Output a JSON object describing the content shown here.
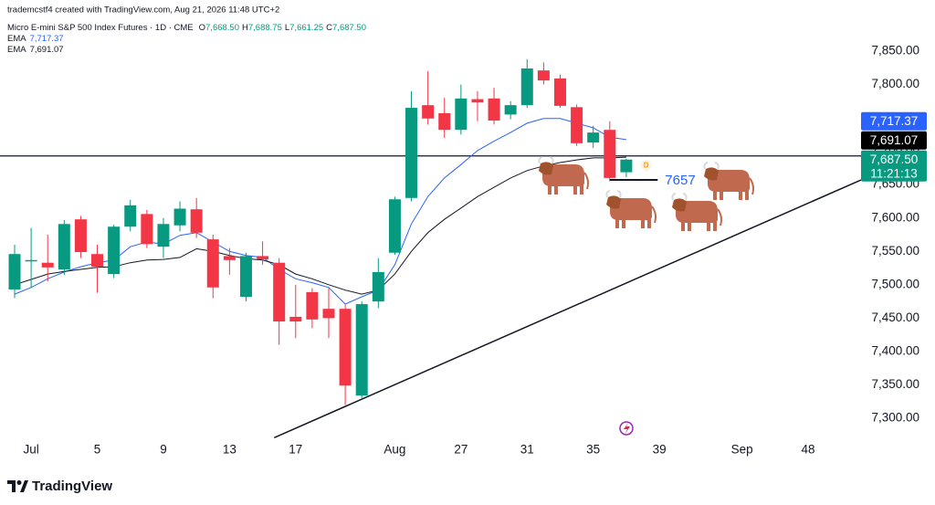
{
  "chart_data": {
    "type": "candlestick",
    "attribution": "trademcstf4 created with TradingView.com, Aug 21, 2026 11:48 UTC+2",
    "title": "Micro E-mini S&P 500 Index Futures · 1D · CME",
    "ohlc_header": [
      {
        "key": "O",
        "value": "7,668.50"
      },
      {
        "key": "H",
        "value": "7,688.75"
      },
      {
        "key": "L",
        "value": "7,661.25"
      },
      {
        "key": "C",
        "value": "7,687.50"
      }
    ],
    "up_color": "#089981",
    "down_color": "#f23645",
    "x": [
      0,
      1,
      2,
      3,
      4,
      5,
      6,
      7,
      8,
      9,
      10,
      11,
      12,
      13,
      14,
      15,
      16,
      17,
      18,
      19,
      20,
      21,
      22,
      23,
      24,
      25,
      26,
      27,
      28,
      29,
      30,
      31,
      32,
      33,
      34,
      35,
      36,
      37
    ],
    "open": [
      7493,
      7535,
      7533,
      7523,
      7598,
      7546,
      7516,
      7587,
      7606,
      7557,
      7589,
      7613,
      7568,
      7543,
      7482,
      7543,
      7533,
      7452,
      7489,
      7464,
      7464,
      7334,
      7475,
      7548,
      7630,
      7769,
      7757,
      7732,
      7778,
      7779,
      7755,
      7769,
      7821,
      7809,
      7766,
      7713,
      7732,
      7668.5
    ],
    "high": [
      7560,
      7585,
      7575,
      7597,
      7603,
      7560,
      7590,
      7627,
      7612,
      7600,
      7625,
      7630,
      7575,
      7555,
      7548,
      7565,
      7540,
      7500,
      7495,
      7495,
      7470,
      7475,
      7540,
      7632,
      7790,
      7820,
      7780,
      7800,
      7790,
      7795,
      7775,
      7838,
      7833,
      7815,
      7770,
      7738,
      7745,
      7688.75
    ],
    "low": [
      7480,
      7495,
      7505,
      7515,
      7540,
      7488,
      7510,
      7580,
      7555,
      7540,
      7580,
      7570,
      7480,
      7515,
      7475,
      7530,
      7410,
      7420,
      7435,
      7420,
      7320,
      7330,
      7465,
      7545,
      7625,
      7740,
      7720,
      7725,
      7745,
      7740,
      7748,
      7765,
      7800,
      7765,
      7708,
      7705,
      7655,
      7661.25
    ],
    "close": [
      7546,
      7537,
      7526,
      7591,
      7549,
      7527,
      7587,
      7619,
      7561,
      7591,
      7614,
      7578,
      7496,
      7537,
      7543,
      7538,
      7445,
      7445,
      7448,
      7450,
      7349,
      7471,
      7519,
      7628,
      7765,
      7749,
      7732,
      7779,
      7773,
      7746,
      7769,
      7824,
      7806,
      7768,
      7712,
      7728,
      7660,
      7687.5
    ],
    "series": [
      {
        "name": "EMA",
        "color": "#2962ff",
        "last_label": "7,717.37",
        "values": [
          7486,
          7496,
          7509,
          7519,
          7527,
          7533,
          7537,
          7557,
          7564,
          7561,
          7574,
          7578,
          7564,
          7550,
          7544,
          7541,
          7523,
          7509,
          7503,
          7496,
          7471,
          7482,
          7492,
          7530,
          7591,
          7632,
          7660,
          7680,
          7701,
          7715,
          7728,
          7742,
          7749,
          7749,
          7742,
          7735,
          7721,
          7717.37
        ]
      },
      {
        "name": "EMA",
        "color": "#131722",
        "last_label": "7,691.07",
        "values": [
          7500,
          7508,
          7516,
          7520,
          7523,
          7526,
          7527,
          7533,
          7537,
          7538,
          7541,
          7554,
          7550,
          7544,
          7539,
          7537,
          7530,
          7516,
          7509,
          7500,
          7492,
          7486,
          7492,
          7516,
          7550,
          7578,
          7598,
          7615,
          7632,
          7646,
          7660,
          7671,
          7678,
          7683,
          7687,
          7690,
          7690,
          7691.07
        ]
      }
    ],
    "xlim": [
      -0.884,
      51.2
    ],
    "xticks": [
      {
        "value": 1,
        "label": "Jul"
      },
      5,
      9,
      13,
      17,
      {
        "value": 23,
        "label": "Aug"
      },
      27,
      31,
      35,
      39,
      {
        "value": 44,
        "label": "Sep"
      },
      48
    ],
    "ylim": [
      7270,
      7926.5
    ],
    "yticks": [
      {
        "value": 7300,
        "label": "7,300.00"
      },
      {
        "value": 7350,
        "label": "7,350.00"
      },
      {
        "value": 7400,
        "label": "7,400.00"
      },
      {
        "value": 7450,
        "label": "7,450.00"
      },
      {
        "value": 7500,
        "label": "7,500.00"
      },
      {
        "value": 7550,
        "label": "7,550.00"
      },
      {
        "value": 7600,
        "label": "7,600.00"
      },
      {
        "value": 7650,
        "label": "7,650.00"
      },
      {
        "value": 7700,
        "label": "7,700.00"
      },
      {
        "value": 7750,
        "label": "7,750.00"
      },
      {
        "value": 7800,
        "label": "7,800.00"
      },
      {
        "value": 7850,
        "label": "7,850.00"
      }
    ],
    "price_labels": [
      {
        "value": 7687.5,
        "label": "7,687.50",
        "color": "#089981",
        "countdown": "11:21:13"
      },
      {
        "value": 7691.07,
        "label": "7,691.07",
        "color": "#000000"
      },
      {
        "value": 7717.37,
        "label": "7,717.37",
        "color": "#2962ff"
      }
    ],
    "hline": 7693,
    "trendline": {
      "x": [
        15.7,
        51.2
      ],
      "y": [
        7271,
        7657
      ]
    },
    "level": {
      "value": 7657,
      "x": [
        36.0,
        38.9
      ]
    },
    "event_marker": {
      "x": 38.2,
      "y": 7679,
      "label": "D"
    },
    "watermark": "TradingView"
  }
}
